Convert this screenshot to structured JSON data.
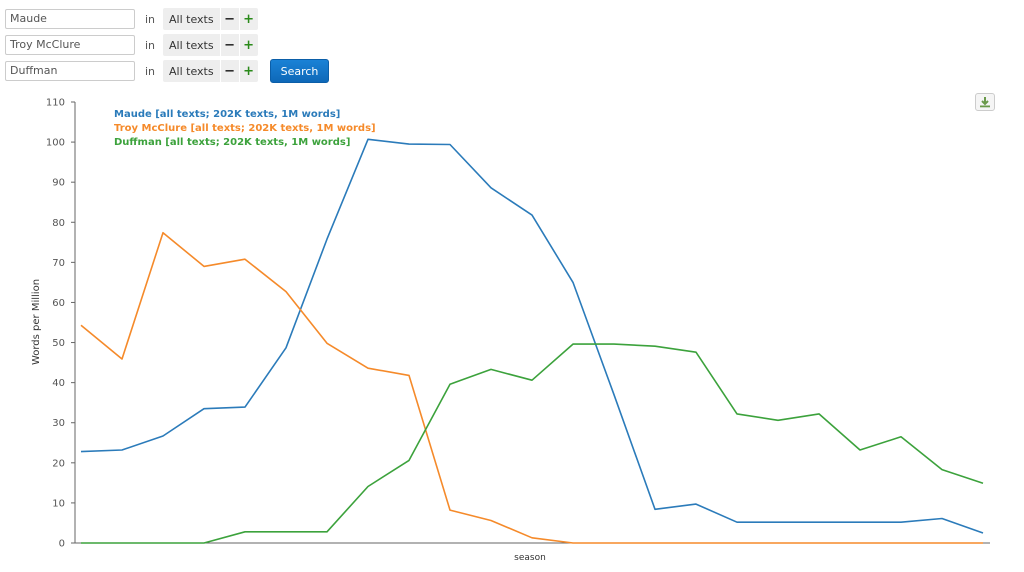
{
  "queries": [
    {
      "term": "Maude",
      "in_label": "in",
      "corpus": "All texts",
      "minus": "−",
      "plus": "+"
    },
    {
      "term": "Troy McClure",
      "in_label": "in",
      "corpus": "All texts",
      "minus": "−",
      "plus": "+"
    },
    {
      "term": "Duffman",
      "in_label": "in",
      "corpus": "All texts",
      "minus": "−",
      "plus": "+"
    }
  ],
  "search_label": "Search",
  "download_icon": "download-icon",
  "colors": {
    "maude": "#2b7bba",
    "troy": "#f58a2a",
    "duffman": "#3ca23c",
    "axis": "#666666",
    "search": "#1273c4"
  },
  "chart_data": {
    "type": "line",
    "title": "",
    "xlabel": "season",
    "ylabel": "Words per Million",
    "ylim": [
      0,
      110
    ],
    "yticks": [
      0,
      10,
      20,
      30,
      40,
      50,
      60,
      70,
      80,
      90,
      100,
      110
    ],
    "grid": false,
    "legend_position": "top-left",
    "x": [
      1,
      2,
      3,
      4,
      5,
      6,
      7,
      8,
      9,
      10,
      11,
      12,
      13,
      14,
      15,
      16,
      17,
      18,
      19,
      20,
      21,
      22,
      23
    ],
    "series": [
      {
        "name": "Maude [all texts; 202K texts, 1M words]",
        "color": "#2b7bba",
        "values": [
          22.8,
          23.2,
          26.7,
          33.5,
          33.9,
          48.7,
          75.8,
          100.7,
          99.5,
          99.4,
          88.6,
          81.8,
          65.0,
          37.0,
          8.4,
          9.7,
          5.2,
          5.2,
          5.2,
          5.2,
          5.2,
          6.1,
          2.5
        ]
      },
      {
        "name": "Troy McClure [all texts; 202K texts, 1M words]",
        "color": "#f58a2a",
        "values": [
          54.3,
          45.9,
          77.4,
          69.0,
          70.8,
          62.7,
          49.8,
          43.6,
          41.8,
          8.2,
          5.6,
          1.3,
          0,
          0,
          0,
          0,
          0,
          0,
          0,
          0,
          0,
          0,
          0
        ]
      },
      {
        "name": "Duffman [all texts; 202K texts, 1M words]",
        "color": "#3ca23c",
        "values": [
          0,
          0,
          0,
          0,
          2.8,
          2.8,
          2.8,
          14.1,
          20.6,
          39.6,
          43.3,
          40.6,
          49.6,
          49.6,
          49.1,
          47.6,
          32.2,
          30.6,
          32.2,
          23.2,
          26.5,
          18.3,
          14.9
        ]
      }
    ]
  }
}
